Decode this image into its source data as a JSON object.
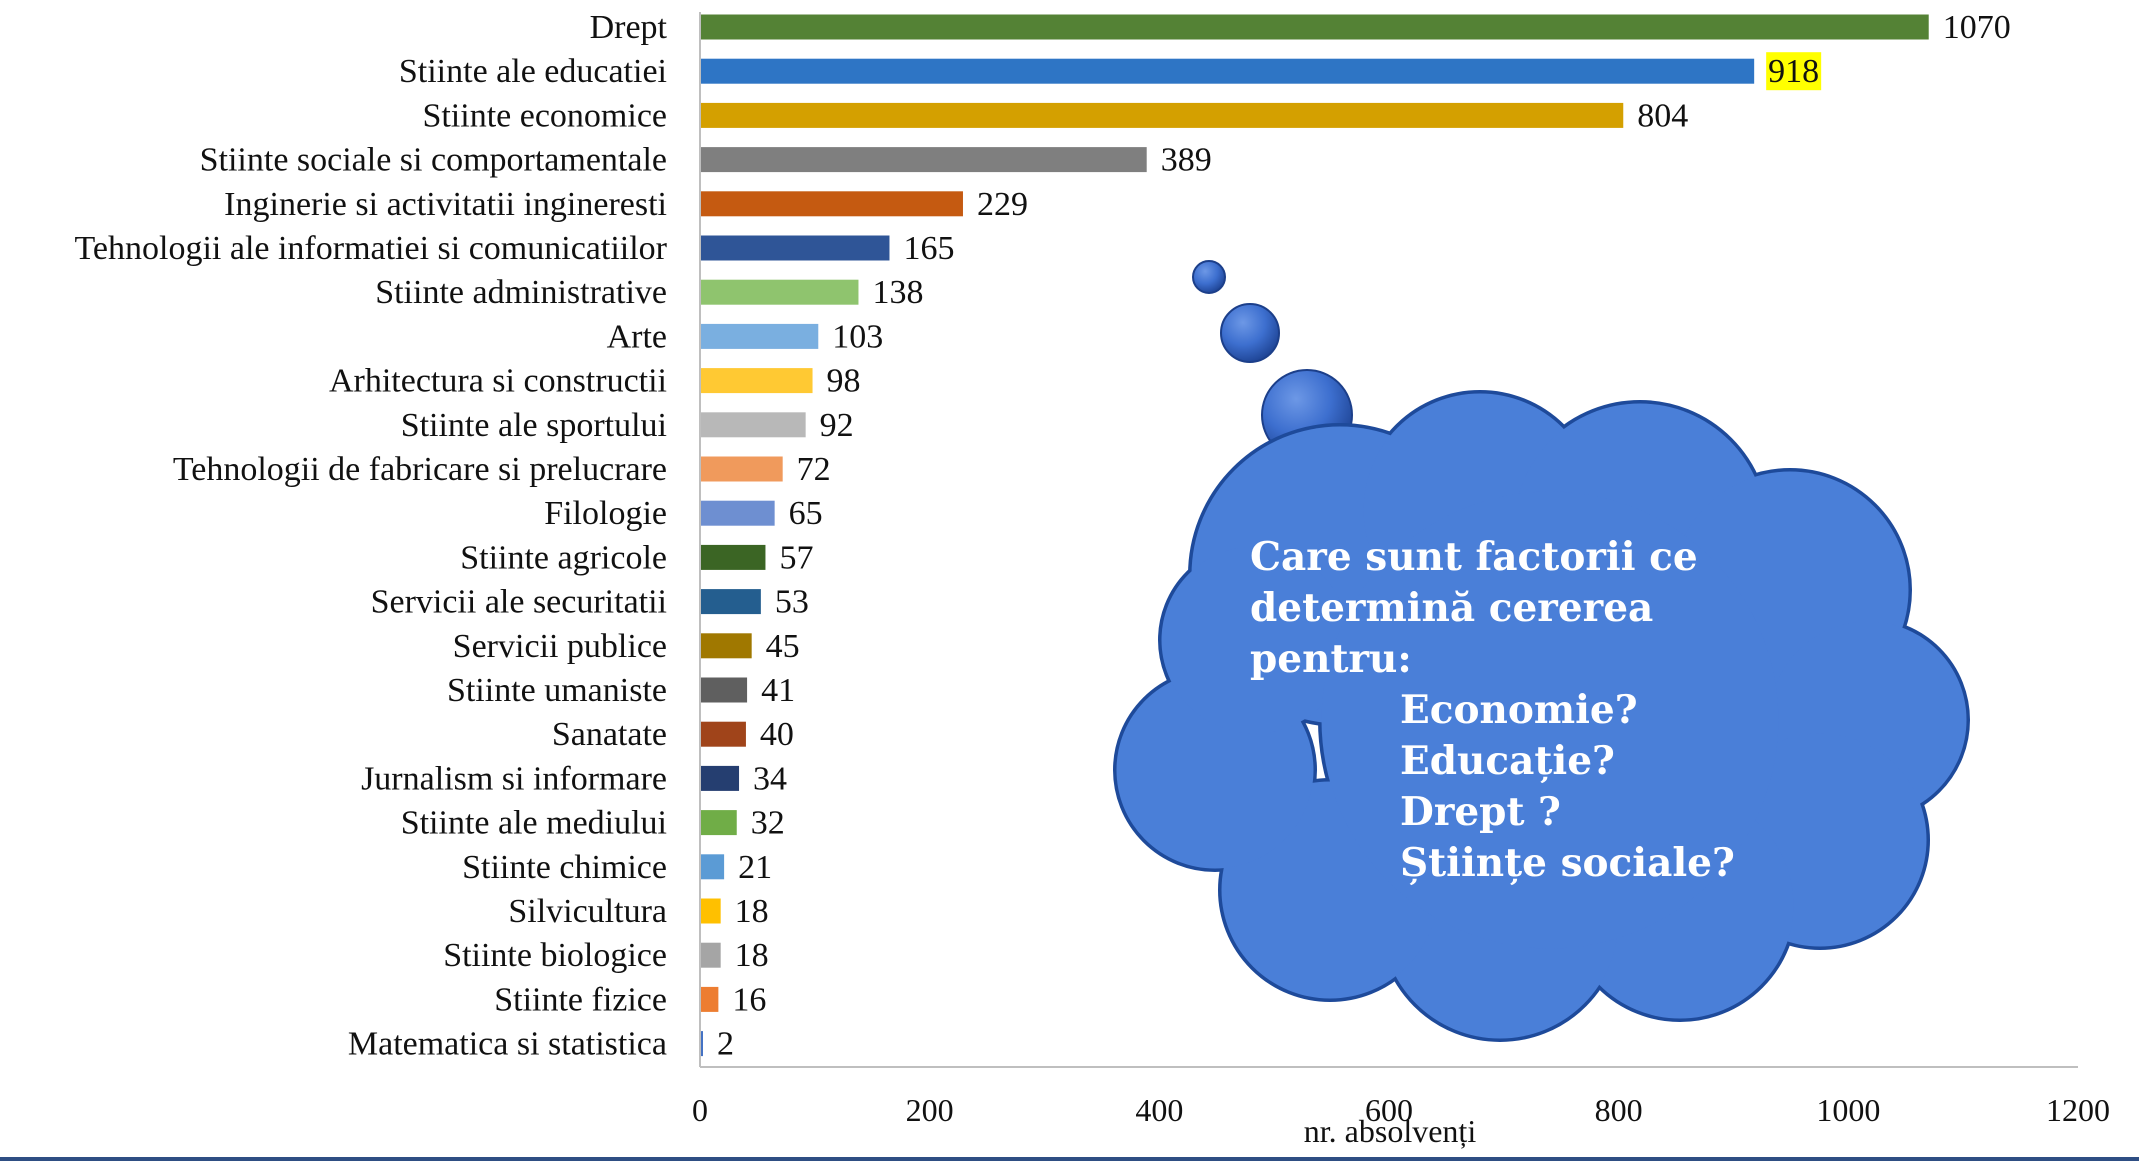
{
  "chart_data": {
    "type": "bar",
    "orientation": "horizontal",
    "categories": [
      "Drept",
      "Stiinte ale educatiei",
      "Stiinte economice",
      "Stiinte sociale si comportamentale",
      "Inginerie si activitatii ingineresti",
      "Tehnologii ale informatiei si comunicatiilor",
      "Stiinte administrative",
      "Arte",
      "Arhitectura si constructii",
      "Stiinte ale sportului",
      "Tehnologii de fabricare si prelucrare",
      "Filologie",
      "Stiinte agricole",
      "Servicii ale securitatii",
      "Servicii publice",
      "Stiinte umaniste",
      "Sanatate",
      "Jurnalism si informare",
      "Stiinte  ale mediului",
      "Stiinte chimice",
      "Silvicultura",
      "Stiinte biologice",
      "Stiinte fizice",
      "Matematica si statistica"
    ],
    "values": [
      1070,
      918,
      804,
      389,
      229,
      165,
      138,
      103,
      98,
      92,
      72,
      65,
      57,
      53,
      45,
      41,
      40,
      34,
      32,
      21,
      18,
      18,
      16,
      2
    ],
    "value_labels": [
      "1070",
      "918",
      "804",
      "389",
      "229",
      "165",
      "138",
      "103",
      "98",
      "92",
      "72",
      "65",
      "57",
      "53",
      "45",
      "41",
      "40",
      "34",
      "32",
      "21",
      "18",
      "18",
      "16",
      "2"
    ],
    "colors": [
      "#548235",
      "#2e75c5",
      "#d4a000",
      "#7f7f7f",
      "#c55a11",
      "#2f5597",
      "#8fc46e",
      "#7aafe0",
      "#ffc933",
      "#b8b8b8",
      "#f09a5c",
      "#6e8fd1",
      "#3b6524",
      "#245e8f",
      "#a07800",
      "#5f5f5f",
      "#a0441a",
      "#253e70",
      "#70ad47",
      "#5b9bd5",
      "#ffc000",
      "#a5a5a5",
      "#ed7d31",
      "#4472c4"
    ],
    "highlighted_value_index": 1,
    "highlight_color": "#ffff00",
    "xlim": [
      0,
      1200
    ],
    "xticks": [
      "0",
      "200",
      "400",
      "600",
      "800",
      "1000",
      "1200"
    ],
    "xlabel": "nr. absolvenți",
    "ylabel": "",
    "title": "",
    "grid": false,
    "legend": false
  },
  "callout": {
    "lines": [
      "Care sunt factorii ce",
      "determină cererea",
      "pentru:"
    ],
    "items": [
      "Economie?",
      "Educație?",
      "Drept ?",
      "Științe sociale?"
    ],
    "fill_color": "#4a7fd8",
    "text_color": "#ffffff"
  }
}
